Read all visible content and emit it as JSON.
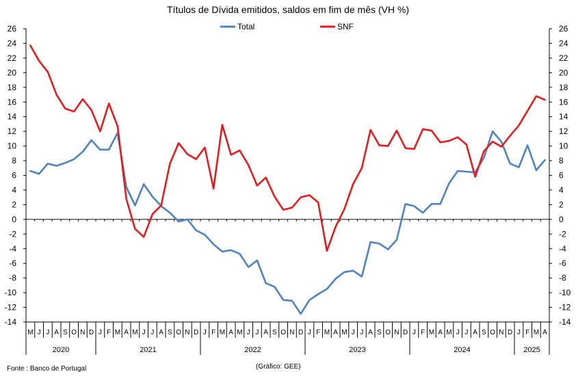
{
  "chart_data": {
    "type": "line",
    "title": "Títulos de Dívida emitidos, saldos em fim de mês  (VH %)",
    "ylim": [
      -14,
      26
    ],
    "yticks": [
      26,
      24,
      22,
      20,
      18,
      16,
      14,
      12,
      10,
      8,
      6,
      4,
      2,
      0,
      -2,
      -4,
      -6,
      -8,
      -10,
      -12,
      -14
    ],
    "grid": false,
    "legend_position": "top-center",
    "months": [
      "M",
      "J",
      "J",
      "A",
      "S",
      "O",
      "N",
      "D",
      "J",
      "F",
      "M",
      "A",
      "M",
      "J",
      "J",
      "A",
      "S",
      "O",
      "N",
      "D",
      "J",
      "F",
      "M",
      "A",
      "M",
      "J",
      "J",
      "A",
      "S",
      "O",
      "N",
      "D",
      "J",
      "F",
      "M",
      "A",
      "M",
      "J",
      "J",
      "A",
      "S",
      "O",
      "N",
      "D",
      "J",
      "F",
      "M",
      "A",
      "M",
      "J",
      "J",
      "A",
      "S",
      "O",
      "N",
      "D",
      "J",
      "F",
      "M",
      "A"
    ],
    "years": [
      {
        "label": "2020",
        "start": 0,
        "count": 8
      },
      {
        "label": "2021",
        "start": 8,
        "count": 12
      },
      {
        "label": "2022",
        "start": 20,
        "count": 12
      },
      {
        "label": "2023",
        "start": 32,
        "count": 12
      },
      {
        "label": "2024",
        "start": 44,
        "count": 12
      },
      {
        "label": "2025",
        "start": 56,
        "count": 4
      }
    ],
    "series": [
      {
        "name": "Total",
        "color": "#4f81bd",
        "values": [
          6.6,
          6.2,
          7.6,
          7.3,
          7.7,
          8.2,
          9.2,
          10.8,
          9.5,
          9.5,
          11.8,
          4.4,
          1.9,
          4.8,
          3.1,
          1.8,
          0.9,
          -0.3,
          0.0,
          -1.5,
          -2.1,
          -3.4,
          -4.4,
          -4.2,
          -4.7,
          -6.5,
          -5.6,
          -8.7,
          -9.2,
          -11.0,
          -11.1,
          -12.9,
          -11.0,
          -10.2,
          -9.5,
          -8.1,
          -7.2,
          -7.0,
          -7.8,
          -3.1,
          -3.3,
          -4.1,
          -2.8,
          2.1,
          1.8,
          0.9,
          2.1,
          2.1,
          4.9,
          6.6,
          6.5,
          6.4,
          8.4,
          12.0,
          10.6,
          7.6,
          7.1,
          10.1,
          6.7,
          8.1
        ]
      },
      {
        "name": "SNF",
        "color": "#e41a1c",
        "values": [
          23.7,
          21.6,
          20.1,
          17.0,
          15.1,
          14.7,
          16.4,
          14.9,
          12.0,
          15.8,
          12.7,
          2.8,
          -1.3,
          -2.4,
          0.7,
          1.9,
          7.6,
          10.4,
          8.9,
          8.2,
          9.8,
          4.2,
          12.9,
          8.8,
          9.4,
          7.4,
          4.6,
          5.7,
          3.1,
          1.3,
          1.6,
          3.0,
          3.3,
          2.3,
          -4.3,
          -1.0,
          1.4,
          4.8,
          7.0,
          12.2,
          10.1,
          10.0,
          12.1,
          9.7,
          9.6,
          12.3,
          12.1,
          10.5,
          10.7,
          11.2,
          10.2,
          5.8,
          9.3,
          10.6,
          9.9,
          11.4,
          12.8,
          14.8,
          16.8,
          16.3
        ]
      }
    ]
  },
  "footer": {
    "source": "Fonte : Banco de Portugal",
    "credit": "(Gráfico: GEE)"
  }
}
